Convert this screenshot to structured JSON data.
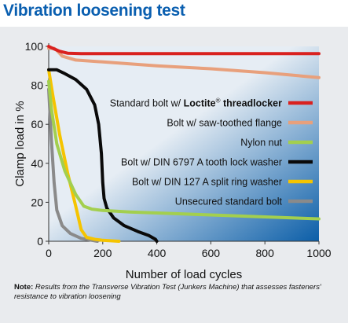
{
  "title": "Vibration loosening test",
  "colors": {
    "title": "#0a5fb0",
    "panel_bg": "#e9ebee",
    "plot_gradient": [
      "#e6edf4",
      "#0b5ea8"
    ]
  },
  "note": {
    "label": "Note:",
    "text": "Results from the Transverse Vibration Test (Junkers Machine) that assesses fasteners' resistance to vibration loosening"
  },
  "chart_data": {
    "type": "line",
    "xlabel": "Number of load cycles",
    "ylabel": "Clamp load in %",
    "xlim": [
      0,
      1000
    ],
    "ylim": [
      0,
      100
    ],
    "xticks": [
      "0",
      "200",
      "400",
      "600",
      "800",
      "1000"
    ],
    "yticks": [
      "0",
      "20",
      "40",
      "60",
      "80",
      "100"
    ],
    "grid": false,
    "legend_position": "right",
    "series": [
      {
        "name_prefix": "Standard bolt w/ ",
        "name_bold": "Loctite",
        "name_sup": "®",
        "name_suffix": " threadlocker",
        "color": "#d9211f",
        "x": [
          0,
          15,
          40,
          70,
          120,
          200,
          400,
          700,
          1000
        ],
        "y": [
          100,
          99,
          97.5,
          96.5,
          96.3,
          96.3,
          96.3,
          96.3,
          96.3
        ]
      },
      {
        "name": "Bolt w/ saw-toothed flange",
        "color": "#e8a07c",
        "x": [
          0,
          20,
          30,
          50,
          100,
          200,
          400,
          600,
          800,
          1000
        ],
        "y": [
          99,
          99,
          98,
          95,
          93,
          92,
          90,
          88.5,
          86.5,
          84
        ]
      },
      {
        "name": "Nylon nut",
        "color": "#a3cf4e",
        "x": [
          0,
          10,
          30,
          60,
          100,
          130,
          160,
          200,
          300,
          500,
          700,
          1000
        ],
        "y": [
          82,
          68,
          50,
          36,
          24,
          18,
          16.5,
          15.8,
          15,
          14,
          13,
          11.5
        ]
      },
      {
        "name": "Bolt w/ DIN 6797 A tooth lock washer",
        "color": "#0a0a0a",
        "x": [
          0,
          30,
          60,
          100,
          140,
          170,
          185,
          195,
          200,
          205,
          215,
          240,
          280,
          330,
          370,
          395,
          400
        ],
        "y": [
          88,
          88,
          86,
          83,
          78,
          70,
          60,
          45,
          30,
          22,
          17,
          12,
          8,
          5,
          3,
          1,
          0
        ]
      },
      {
        "name": "Bolt w/ DIN 127 A split ring washer",
        "color": "#f5c400",
        "x": [
          0,
          15,
          40,
          70,
          100,
          120,
          140,
          170,
          200,
          260
        ],
        "y": [
          88,
          75,
          55,
          35,
          18,
          6,
          2,
          1,
          0.5,
          0
        ]
      },
      {
        "name": "Unsecured standard bolt",
        "color": "#8a8a8a",
        "x": [
          0,
          5,
          10,
          20,
          30,
          50,
          80,
          120,
          180
        ],
        "y": [
          78,
          65,
          52,
          30,
          16,
          8,
          4,
          1.5,
          0
        ]
      }
    ]
  }
}
